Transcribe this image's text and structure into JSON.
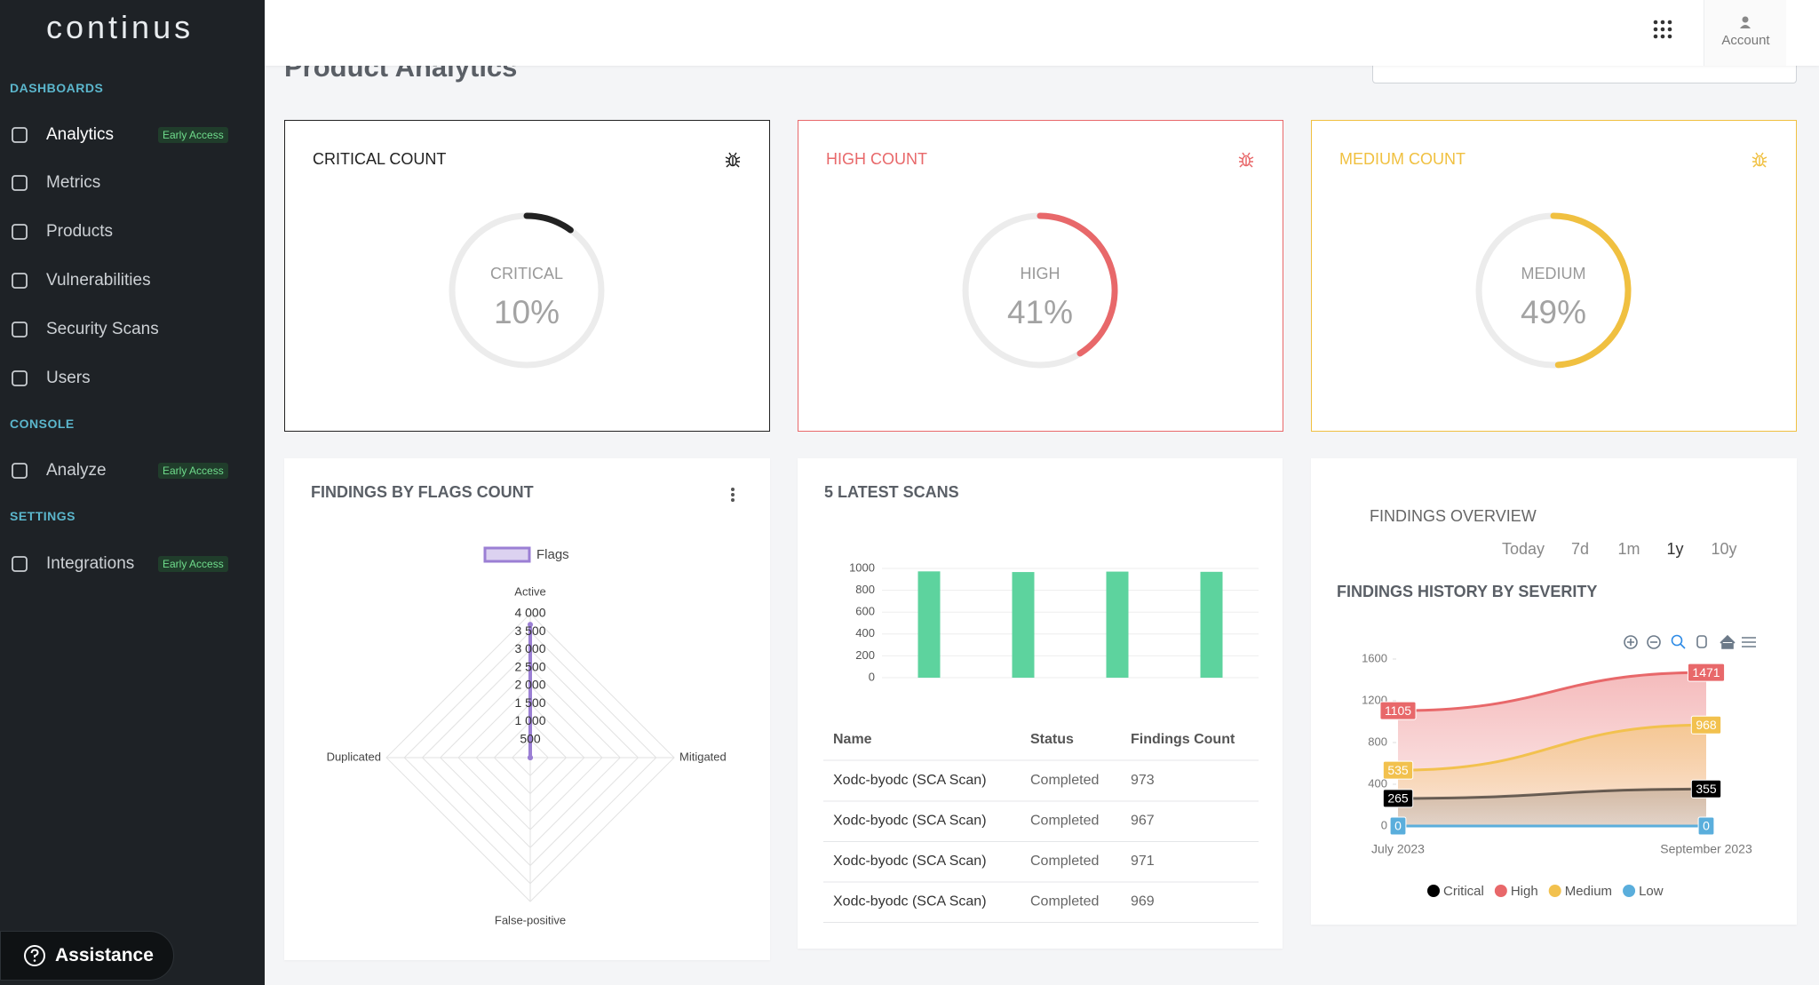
{
  "sidebar": {
    "logo": "continus",
    "sections": [
      {
        "title": "DASHBOARDS",
        "items": [
          {
            "label": "Analytics",
            "badge": "Early Access"
          },
          {
            "label": "Metrics"
          },
          {
            "label": "Products"
          },
          {
            "label": "Vulnerabilities"
          },
          {
            "label": "Security Scans"
          },
          {
            "label": "Users"
          }
        ]
      },
      {
        "title": "CONSOLE",
        "items": [
          {
            "label": "Analyze",
            "badge": "Early Access"
          }
        ]
      },
      {
        "title": "SETTINGS",
        "items": [
          {
            "label": "Integrations",
            "badge": "Early Access"
          }
        ]
      }
    ],
    "assistance": "Assistance"
  },
  "header": {
    "account": "Account"
  },
  "page_title": "Product Analytics",
  "table": {
    "columns": [
      "Name",
      "Status",
      "Findings Count"
    ],
    "rows": [
      [
        "Xodc-byodc (SCA Scan)",
        "Completed",
        973
      ],
      [
        "Xodc-byodc (SCA Scan)",
        "Completed",
        967
      ],
      [
        "Xodc-byodc (SCA Scan)",
        "Completed",
        971
      ],
      [
        "Xodc-byodc (SCA Scan)",
        "Completed",
        969
      ]
    ]
  },
  "chart_data": [
    {
      "type": "gauge",
      "title": "CRITICAL COUNT",
      "label": "CRITICAL",
      "values": [
        10
      ],
      "value_labels": [
        "10%"
      ],
      "ylim": [
        0,
        100
      ],
      "color": "#222222"
    },
    {
      "type": "gauge",
      "title": "HIGH COUNT",
      "label": "HIGH",
      "values": [
        41
      ],
      "value_labels": [
        "41%"
      ],
      "ylim": [
        0,
        100
      ],
      "color": "#e8686a"
    },
    {
      "type": "gauge",
      "title": "MEDIUM COUNT",
      "label": "MEDIUM",
      "values": [
        49
      ],
      "value_labels": [
        "49%"
      ],
      "ylim": [
        0,
        100
      ],
      "color": "#f0c040"
    },
    {
      "type": "radar",
      "title": "FINDINGS BY FLAGS COUNT",
      "categories": [
        "Active",
        "Mitigated",
        "False-positive",
        "Duplicated"
      ],
      "series": [
        {
          "name": "Flags",
          "color": "#9b7fd4",
          "values": [
            3700,
            0,
            0,
            0
          ]
        }
      ],
      "ylim": [
        0,
        4000
      ],
      "yticks": [
        500,
        {
          "value": 1000,
          "label": "1 000"
        },
        {
          "value": 1500,
          "label": "1 500"
        },
        {
          "value": 2000,
          "label": "2 000"
        },
        {
          "value": 2500,
          "label": "2 500"
        },
        {
          "value": 3000,
          "label": "3 000"
        },
        {
          "value": 3500,
          "label": "3 500"
        },
        {
          "value": 4000,
          "label": "4 000"
        }
      ]
    },
    {
      "type": "bar",
      "title": "5 LATEST SCANS",
      "categories": [
        null,
        null,
        null,
        null
      ],
      "values": [
        973,
        967,
        971,
        969
      ],
      "color": "#5dd39e",
      "ylim": [
        0,
        1000
      ],
      "yticks": [
        0,
        200,
        400,
        600,
        800,
        1000
      ],
      "grid": true
    },
    {
      "type": "area",
      "overview_title": "FINDINGS OVERVIEW",
      "ranges": [
        "Today",
        "7d",
        "1m",
        "1y",
        "10y"
      ],
      "selected_range": 3,
      "title": "FINDINGS HISTORY BY SEVERITY",
      "categories": [
        "July 2023",
        "September 2023"
      ],
      "series": [
        {
          "name": "Critical",
          "color": "#000000",
          "values": [
            265,
            355
          ]
        },
        {
          "name": "High",
          "color": "#e8686a",
          "values": [
            1105,
            1471
          ]
        },
        {
          "name": "Medium",
          "color": "#f2c14e",
          "values": [
            535,
            968
          ]
        },
        {
          "name": "Low",
          "color": "#5aaedc",
          "values": [
            0,
            0
          ]
        }
      ],
      "ylim": [
        0,
        1600
      ],
      "yticks": [
        0,
        400,
        800,
        1200,
        1600
      ],
      "legend": "bottom"
    }
  ]
}
